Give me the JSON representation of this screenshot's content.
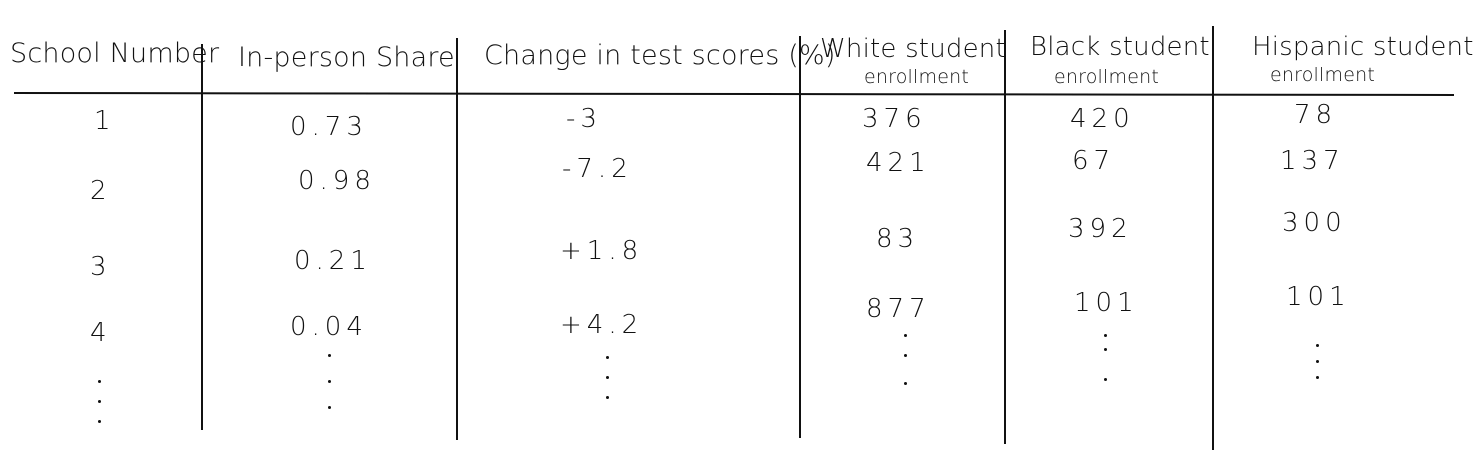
{
  "table": {
    "headers": [
      {
        "line1": "School Number",
        "line2": ""
      },
      {
        "line1": "In-person Share",
        "line2": ""
      },
      {
        "line1": "Change in test scores (%)",
        "line2": ""
      },
      {
        "line1": "White student",
        "line2": "enrollment"
      },
      {
        "line1": "Black student",
        "line2": "enrollment"
      },
      {
        "line1": "Hispanic student",
        "line2": "enrollment"
      }
    ],
    "rows": [
      [
        "1",
        "0.73",
        "-3",
        "376",
        "420",
        "78"
      ],
      [
        "2",
        "0.98",
        "-7.2",
        "421",
        "67",
        "137"
      ],
      [
        "3",
        "0.21",
        "+1.8",
        "83",
        "392",
        "300"
      ],
      [
        "4",
        "0.04",
        "+4.2",
        "877",
        "101",
        "101"
      ]
    ]
  }
}
